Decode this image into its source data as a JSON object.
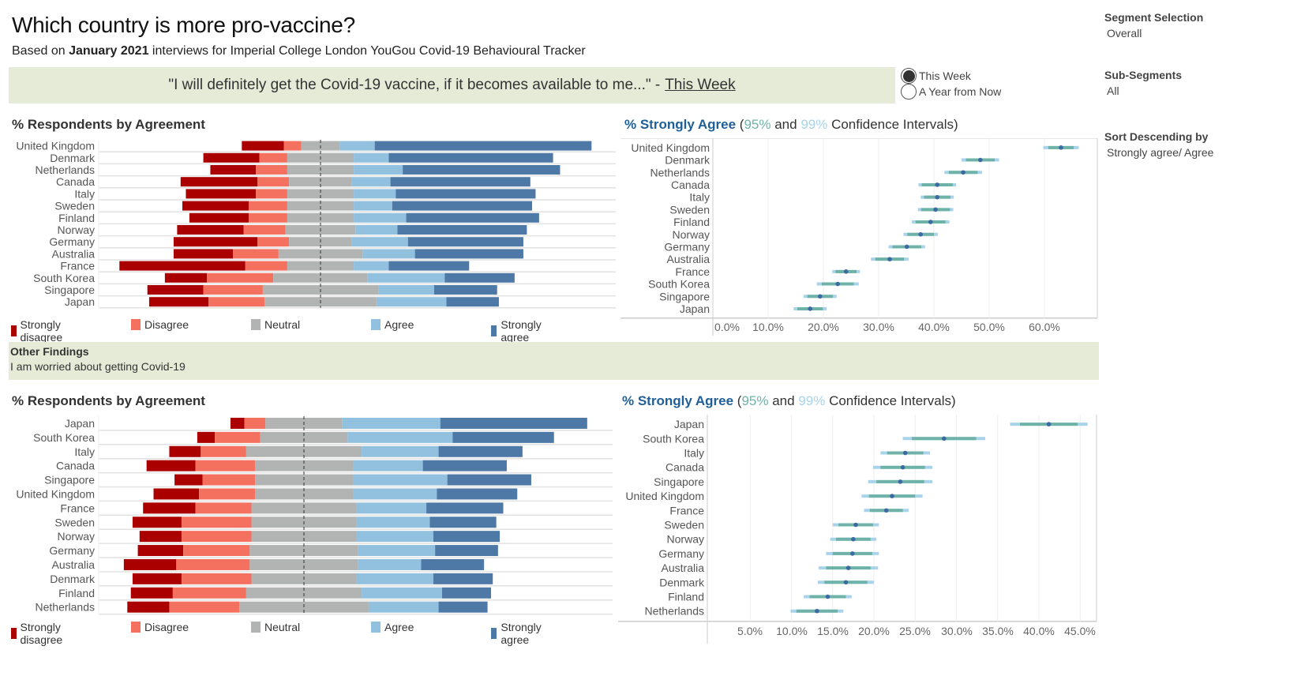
{
  "header": {
    "title": "Which country is more pro-vaccine?",
    "subtitle_prefix": "Based on ",
    "subtitle_bold": "January 2021",
    "subtitle_suffix": " interviews for Imperial College London YouGou Covid-19 Behavioural Tracker"
  },
  "question": {
    "text": "\"I will definitely get the Covid-19 vaccine, if it becomes available to me...\" -",
    "timeframe": "This Week"
  },
  "timeframe_options": [
    {
      "label": "This Week",
      "selected": true
    },
    {
      "label": "A Year from Now",
      "selected": false
    }
  ],
  "filters": {
    "segment_label": "Segment Selection",
    "segment_value": "Overall",
    "subsegment_label": "Sub-Segments",
    "subsegment_value": "All",
    "sort_label": "Sort Descending by",
    "sort_value": "Strongly agree/ Agree"
  },
  "legend": [
    {
      "label": "Strongly disagree",
      "color": "#ab0000"
    },
    {
      "label": "Disagree",
      "color": "#f4705f"
    },
    {
      "label": "Neutral",
      "color": "#b2b4b4"
    },
    {
      "label": "Agree",
      "color": "#92c0df"
    },
    {
      "label": "Strongly agree",
      "color": "#4e79a7"
    }
  ],
  "other_findings": {
    "heading": "Other Findings",
    "statement": "I am worried about getting Covid-19"
  },
  "ci_title": {
    "prefix": "% Strongly Agree",
    "open": " (",
    "p95": "95%",
    "and": " and ",
    "p99": "99%",
    "suffix": " Confidence Intervals)"
  },
  "chart_data": [
    {
      "type": "bar",
      "subtype": "diverging-stacked",
      "title": "% Respondents by Agreement",
      "question": "I will definitely get the Covid-19 vaccine, if it becomes available to me (This Week)",
      "categories": [
        "United Kingdom",
        "Denmark",
        "Netherlands",
        "Canada",
        "Italy",
        "Sweden",
        "Finland",
        "Norway",
        "Germany",
        "Australia",
        "France",
        "South Korea",
        "Singapore",
        "Japan"
      ],
      "series": [
        {
          "name": "Strongly disagree",
          "values": [
            12,
            16,
            13,
            22,
            20,
            19,
            17,
            19,
            24,
            17,
            36,
            12,
            16,
            17
          ]
        },
        {
          "name": "Disagree",
          "values": [
            5,
            8,
            9,
            9,
            9,
            11,
            11,
            12,
            9,
            13,
            12,
            19,
            17,
            16
          ]
        },
        {
          "name": "Neutral",
          "values": [
            11,
            19,
            19,
            18,
            19,
            19,
            19,
            20,
            18,
            24,
            19,
            27,
            33,
            32
          ]
        },
        {
          "name": "Agree",
          "values": [
            10,
            10,
            14,
            11,
            12,
            11,
            15,
            12,
            16,
            15,
            10,
            22,
            16,
            20
          ]
        },
        {
          "name": "Strongly agree",
          "values": [
            62,
            47,
            45,
            40,
            40,
            40,
            38,
            37,
            33,
            31,
            23,
            20,
            18,
            15
          ]
        }
      ],
      "center": "neutral midpoint",
      "legend": "bottom"
    },
    {
      "type": "scatter",
      "subtype": "confidence-interval",
      "title": "% Strongly Agree (95% and 99% Confidence Intervals)",
      "categories": [
        "United Kingdom",
        "Denmark",
        "Netherlands",
        "Canada",
        "Italy",
        "Sweden",
        "Finland",
        "Norway",
        "Germany",
        "Australia",
        "France",
        "South Korea",
        "Singapore",
        "Japan"
      ],
      "estimate": [
        63.0,
        48.4,
        45.3,
        40.6,
        40.6,
        40.3,
        39.4,
        37.6,
        35.1,
        32.0,
        24.1,
        22.6,
        19.4,
        17.6
      ],
      "ci95_halfwidth": [
        2.3,
        2.6,
        2.6,
        2.8,
        2.4,
        2.6,
        2.7,
        2.4,
        2.6,
        2.6,
        1.9,
        2.9,
        2.3,
        2.3
      ],
      "ci99_halfwidth": [
        3.2,
        3.4,
        3.4,
        3.4,
        3.0,
        3.2,
        3.4,
        3.1,
        3.3,
        3.4,
        2.5,
        3.8,
        3.0,
        3.0
      ],
      "xticks": [
        "0.0%",
        "10.0%",
        "20.0%",
        "30.0%",
        "40.0%",
        "50.0%",
        "60.0%"
      ],
      "xlim": [
        0,
        70
      ],
      "grid": true
    },
    {
      "type": "bar",
      "subtype": "diverging-stacked",
      "title": "% Respondents by Agreement",
      "question": "I am worried about getting Covid-19",
      "categories": [
        "Japan",
        "South Korea",
        "Italy",
        "Canada",
        "Singapore",
        "United Kingdom",
        "France",
        "Sweden",
        "Norway",
        "Germany",
        "Australia",
        "Denmark",
        "Finland",
        "Netherlands"
      ],
      "series": [
        {
          "name": "Strongly disagree",
          "values": [
            4,
            5,
            9,
            14,
            8,
            13,
            15,
            14,
            12,
            13,
            15,
            14,
            12,
            12
          ]
        },
        {
          "name": "Disagree",
          "values": [
            6,
            13,
            13,
            17,
            15,
            16,
            16,
            20,
            20,
            19,
            21,
            20,
            21,
            20
          ]
        },
        {
          "name": "Neutral",
          "values": [
            22,
            25,
            33,
            28,
            28,
            28,
            30,
            30,
            30,
            31,
            31,
            30,
            33,
            37
          ]
        },
        {
          "name": "Agree",
          "values": [
            28,
            30,
            22,
            20,
            27,
            24,
            20,
            21,
            22,
            22,
            18,
            22,
            23,
            20
          ]
        },
        {
          "name": "Strongly agree",
          "values": [
            42,
            29,
            24,
            24,
            24,
            23,
            22,
            19,
            19,
            18,
            18,
            17,
            14,
            14
          ]
        }
      ],
      "center": "neutral midpoint",
      "legend": "bottom"
    },
    {
      "type": "scatter",
      "subtype": "confidence-interval",
      "title": "% Strongly Agree (95% and 99% Confidence Intervals)",
      "categories": [
        "Japan",
        "South Korea",
        "Italy",
        "Canada",
        "Singapore",
        "United Kingdom",
        "France",
        "Sweden",
        "Norway",
        "Germany",
        "Australia",
        "Denmark",
        "Finland",
        "Netherlands"
      ],
      "estimate": [
        41.2,
        28.5,
        23.8,
        23.5,
        23.2,
        22.2,
        21.5,
        17.8,
        17.5,
        17.4,
        16.9,
        16.6,
        14.4,
        13.1
      ],
      "ci95_halfwidth": [
        3.5,
        3.9,
        2.2,
        2.7,
        2.9,
        2.8,
        2.0,
        2.1,
        2.1,
        2.4,
        2.7,
        2.6,
        2.2,
        2.5
      ],
      "ci99_halfwidth": [
        4.7,
        5.0,
        3.0,
        3.6,
        3.9,
        3.7,
        2.7,
        2.8,
        2.8,
        3.2,
        3.6,
        3.4,
        2.9,
        3.2
      ],
      "xticks": [
        "5.0%",
        "10.0%",
        "15.0%",
        "20.0%",
        "25.0%",
        "30.0%",
        "35.0%",
        "40.0%",
        "45.0%"
      ],
      "xlim": [
        0,
        47.5
      ],
      "grid": true
    }
  ]
}
